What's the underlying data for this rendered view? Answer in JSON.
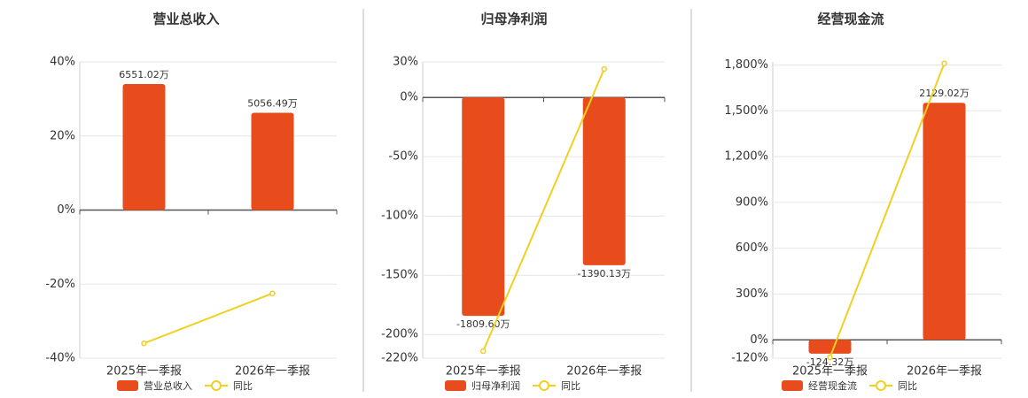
{
  "chart_data": [
    {
      "type": "bar",
      "title": "营业总收入",
      "categories": [
        "2025年一季报",
        "2026年一季报"
      ],
      "series": [
        {
          "name": "营业总收入",
          "type": "bar",
          "axis": "y2",
          "color": "#e84c1c",
          "values": [
            6551.02,
            5056.49
          ],
          "value_labels": [
            "6551.02万",
            "5056.49万"
          ]
        },
        {
          "name": "同比",
          "type": "line",
          "color": "#f0d020",
          "values": [
            -36,
            -22.5
          ]
        }
      ],
      "ylim": [
        -40,
        40
      ],
      "yticks": [
        {
          "value": -40,
          "label": "-40%"
        },
        {
          "value": -20,
          "label": "-20%"
        },
        {
          "value": 0,
          "label": "0%"
        },
        {
          "value": 20,
          "label": "20%"
        },
        {
          "value": 40,
          "label": "40%"
        }
      ],
      "y2lim": [
        -7700,
        7700
      ],
      "grid": true
    },
    {
      "type": "bar",
      "title": "归母净利润",
      "categories": [
        "2025年一季报",
        "2026年一季报"
      ],
      "series": [
        {
          "name": "归母净利润",
          "type": "bar",
          "axis": "y2",
          "color": "#e84c1c",
          "values": [
            -1809.6,
            -1390.13
          ],
          "value_labels": [
            "-1809.60万",
            "-1390.13万"
          ]
        },
        {
          "name": "同比",
          "type": "line",
          "color": "#f0d020",
          "values": [
            -214,
            24
          ]
        }
      ],
      "ylim": [
        -220,
        30
      ],
      "yticks": [
        {
          "value": -220,
          "label": "-220%"
        },
        {
          "value": -200,
          "label": "-200%"
        },
        {
          "value": -150,
          "label": "-150%"
        },
        {
          "value": -100,
          "label": "-100%"
        },
        {
          "value": -50,
          "label": "-50%"
        },
        {
          "value": 0,
          "label": "0%"
        },
        {
          "value": 30,
          "label": "30%"
        }
      ],
      "y2lim": [
        -2161,
        295
      ],
      "grid": true
    },
    {
      "type": "bar",
      "title": "经营现金流",
      "categories": [
        "2025年一季报",
        "2026年一季报"
      ],
      "series": [
        {
          "name": "经营现金流",
          "type": "bar",
          "axis": "y2",
          "color": "#e84c1c",
          "values": [
            -124.32,
            2129.02
          ],
          "value_labels": [
            "-124.32万",
            "2129.02万"
          ]
        },
        {
          "name": "同比",
          "type": "line",
          "color": "#f0d020",
          "values": [
            -115,
            1810
          ]
        }
      ],
      "ylim": [
        -120,
        1820
      ],
      "yticks": [
        {
          "value": -120,
          "label": "-120%"
        },
        {
          "value": 0,
          "label": "0%"
        },
        {
          "value": 300,
          "label": "300%"
        },
        {
          "value": 600,
          "label": "600%"
        },
        {
          "value": 900,
          "label": "900%"
        },
        {
          "value": 1200,
          "label": "1,200%"
        },
        {
          "value": 1500,
          "label": "1,500%"
        },
        {
          "value": 1800,
          "label": "1,800%"
        }
      ],
      "y2lim": [
        -165,
        2496
      ],
      "grid": true
    }
  ]
}
